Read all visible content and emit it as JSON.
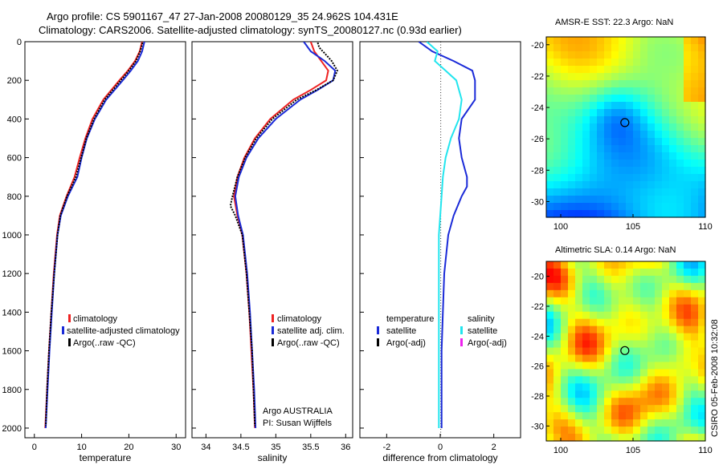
{
  "title_line1": "Argo profile: CS 5901167_47 27-Jan-2008 20080129_35 24.962S 104.431E",
  "title_line2": "Climatology: CARS2006. Satellite-adjusted climatology: synTS_20080127.nc (0.93d earlier)",
  "credit": "CSIRO 05-Feb-2008 10:32:08",
  "colors": {
    "climatology": "#ee2222",
    "satellite": "#1a2ad8",
    "argo": "#000000",
    "sal_satellite": "#22e5ee",
    "sal_argo": "#ee22ee"
  },
  "chart_data": [
    {
      "type": "line",
      "id": "temperature",
      "xlabel": "temperature",
      "xlim": [
        -2,
        32
      ],
      "ylim": [
        2050,
        0
      ],
      "y_reversed": true,
      "xticks": [
        "0",
        "10",
        "20",
        "30"
      ],
      "yticks": [
        "0",
        "200",
        "400",
        "600",
        "800",
        "1000",
        "1200",
        "1400",
        "1600",
        "1800",
        "2000"
      ],
      "legend": [
        "climatology",
        "satellite-adjusted climatology",
        "Argo(..raw -QC)"
      ],
      "series": [
        {
          "name": "climatology",
          "color": "#ee2222",
          "depth": [
            0,
            50,
            100,
            150,
            200,
            300,
            400,
            500,
            600,
            700,
            800,
            900,
            1000,
            1200,
            1400,
            1600,
            1800,
            2000
          ],
          "values": [
            22.8,
            22.3,
            21.3,
            19.8,
            18.0,
            14.6,
            12.3,
            10.8,
            9.6,
            8.5,
            6.8,
            5.4,
            4.8,
            4.1,
            3.6,
            3.1,
            2.7,
            2.3
          ]
        },
        {
          "name": "satellite-adjusted climatology",
          "color": "#1a2ad8",
          "depth": [
            0,
            50,
            100,
            150,
            200,
            300,
            400,
            500,
            600,
            700,
            800,
            900,
            1000,
            1200,
            1400,
            1600,
            1800,
            2000
          ],
          "values": [
            23.3,
            22.8,
            21.9,
            20.4,
            18.7,
            15.2,
            12.8,
            11.1,
            10.0,
            9.1,
            7.1,
            5.6,
            4.9,
            4.2,
            3.7,
            3.2,
            2.8,
            2.4
          ]
        },
        {
          "name": "Argo(..raw -QC)",
          "color": "#000000",
          "depth": [
            5,
            50,
            100,
            150,
            200,
            300,
            400,
            500,
            600,
            700,
            800,
            900,
            1000,
            1200,
            1400,
            1600,
            1800,
            1990
          ],
          "values": [
            22.9,
            22.4,
            21.5,
            20.0,
            18.3,
            14.9,
            12.6,
            11.0,
            9.9,
            8.8,
            6.9,
            5.5,
            4.9,
            4.2,
            3.6,
            3.1,
            2.7,
            2.4
          ]
        }
      ]
    },
    {
      "type": "line",
      "id": "salinity",
      "xlabel": "salinity",
      "xlim": [
        33.8,
        36.1
      ],
      "ylim": [
        2050,
        0
      ],
      "y_reversed": true,
      "xticks": [
        "34",
        "34.5",
        "35",
        "35.5",
        "36"
      ],
      "legend": [
        "climatology",
        "satellite adj. clim.",
        "Argo(..raw -QC)"
      ],
      "notes": [
        "Argo AUSTRALIA",
        "PI: Susan Wijffels"
      ],
      "series": [
        {
          "name": "climatology",
          "color": "#ee2222",
          "depth": [
            0,
            50,
            100,
            150,
            200,
            250,
            300,
            400,
            500,
            600,
            700,
            800,
            900,
            1000,
            1200,
            1400,
            1600,
            1800,
            2000
          ],
          "values": [
            35.5,
            35.55,
            35.65,
            35.75,
            35.72,
            35.5,
            35.25,
            34.92,
            34.7,
            34.55,
            34.45,
            34.4,
            34.45,
            34.52,
            34.58,
            34.62,
            34.65,
            34.68,
            34.7
          ]
        },
        {
          "name": "satellite adj. clim.",
          "color": "#1a2ad8",
          "depth": [
            0,
            50,
            100,
            150,
            200,
            250,
            300,
            400,
            500,
            600,
            700,
            800,
            900,
            1000,
            1200,
            1400,
            1600,
            1800,
            2000
          ],
          "values": [
            35.4,
            35.5,
            35.7,
            35.85,
            35.82,
            35.6,
            35.35,
            35.0,
            34.75,
            34.58,
            34.47,
            34.42,
            34.46,
            34.53,
            34.59,
            34.63,
            34.66,
            34.69,
            34.71
          ]
        },
        {
          "name": "Argo(..raw -QC)",
          "color": "#000000",
          "depth": [
            5,
            30,
            60,
            100,
            150,
            200,
            250,
            300,
            400,
            500,
            600,
            700,
            800,
            850,
            900,
            1000,
            1200,
            1400,
            1600,
            1800,
            1990
          ],
          "values": [
            35.6,
            35.62,
            35.7,
            35.8,
            35.88,
            35.82,
            35.58,
            35.3,
            34.95,
            34.72,
            34.56,
            34.45,
            34.38,
            34.35,
            34.42,
            34.52,
            34.58,
            34.62,
            34.66,
            34.68,
            34.7
          ]
        }
      ]
    },
    {
      "type": "line",
      "id": "difference",
      "xlabel": "difference from climatology",
      "xlim": [
        -3,
        3
      ],
      "ylim": [
        2050,
        0
      ],
      "y_reversed": true,
      "xticks": [
        "-2",
        "0",
        "2"
      ],
      "legend_left_title": "temperature",
      "legend_left": [
        "satellite",
        "Argo(-adj)"
      ],
      "legend_right_title": "salinity",
      "legend_right": [
        "satellite",
        "Argo(-adj)"
      ],
      "series": [
        {
          "name": "temperature satellite",
          "color": "#1a2ad8",
          "depth": [
            0,
            50,
            100,
            150,
            200,
            300,
            400,
            500,
            600,
            700,
            750,
            800,
            900,
            1000,
            1200,
            1400,
            1600,
            1800,
            2000
          ],
          "values": [
            -0.8,
            -0.3,
            0.5,
            1.2,
            1.3,
            1.3,
            0.8,
            0.7,
            0.8,
            1.0,
            1.0,
            0.8,
            0.5,
            0.3,
            0.15,
            0.1,
            0.05,
            0.05,
            0.05
          ]
        },
        {
          "name": "salinity satellite",
          "color": "#22e5ee",
          "depth": [
            0,
            50,
            100,
            150,
            200,
            300,
            400,
            500,
            600,
            700,
            800,
            900,
            1000,
            1200,
            1400,
            1600,
            1800,
            2000
          ],
          "values": [
            -0.5,
            -0.1,
            -0.2,
            0.2,
            0.6,
            0.8,
            0.7,
            0.4,
            0.2,
            0.1,
            0.05,
            0.0,
            -0.05,
            -0.05,
            -0.05,
            -0.05,
            -0.05,
            -0.05
          ]
        }
      ]
    },
    {
      "type": "heatmap",
      "id": "sst_map",
      "title": "AMSR-E SST: 22.3 Argo: NaN",
      "xlim": [
        99,
        110
      ],
      "ylim": [
        -31,
        -19.5
      ],
      "xticks": [
        "100",
        "105",
        "110"
      ],
      "yticks": [
        "-20",
        "-22",
        "-24",
        "-26",
        "-28",
        "-30"
      ],
      "marker": {
        "lon": 104.431,
        "lat": -24.962
      }
    },
    {
      "type": "heatmap",
      "id": "sla_map",
      "title": "Altimetric SLA: 0.14 Argo: NaN",
      "xlim": [
        99,
        110
      ],
      "ylim": [
        -31,
        -19.0
      ],
      "xticks": [
        "100",
        "105",
        "110"
      ],
      "yticks": [
        "-20",
        "-22",
        "-24",
        "-26",
        "-28",
        "-30"
      ],
      "marker": {
        "lon": 104.431,
        "lat": -24.962
      }
    }
  ]
}
